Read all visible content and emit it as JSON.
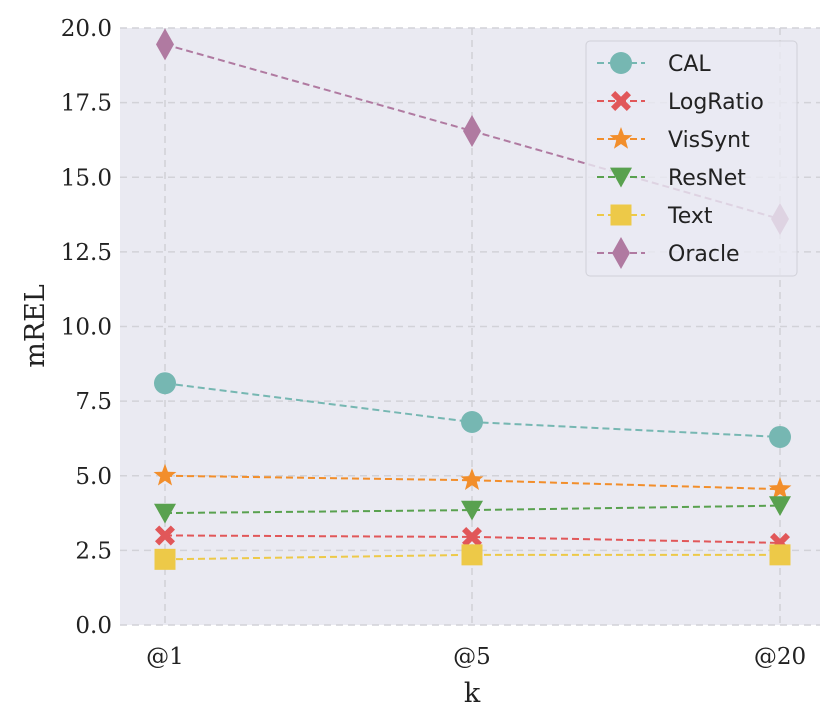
{
  "chart_data": {
    "type": "line",
    "title": "",
    "xlabel": "k",
    "ylabel": "mREL",
    "categories": [
      "@1",
      "@5",
      "@20"
    ],
    "ylim": [
      0,
      20
    ],
    "yticks": [
      "0.0",
      "2.5",
      "5.0",
      "7.5",
      "10.0",
      "12.5",
      "15.0",
      "17.5",
      "20.0"
    ],
    "grid": true,
    "legend_position": "top-right",
    "series": [
      {
        "name": "CAL",
        "values": [
          8.1,
          6.8,
          6.3
        ],
        "color": "#76b7b2",
        "marker": "circle"
      },
      {
        "name": "LogRatio",
        "values": [
          3.0,
          2.95,
          2.75
        ],
        "color": "#e15759",
        "marker": "x"
      },
      {
        "name": "VisSynt",
        "values": [
          5.0,
          4.85,
          4.55
        ],
        "color": "#f28e2b",
        "marker": "star"
      },
      {
        "name": "ResNet",
        "values": [
          3.75,
          3.85,
          4.0
        ],
        "color": "#59a14f",
        "marker": "triangle-down"
      },
      {
        "name": "Text",
        "values": [
          2.2,
          2.35,
          2.35
        ],
        "color": "#edc948",
        "marker": "square"
      },
      {
        "name": "Oracle",
        "values": [
          19.45,
          16.55,
          13.6
        ],
        "color": "#b07aa1",
        "marker": "diamond"
      }
    ]
  }
}
